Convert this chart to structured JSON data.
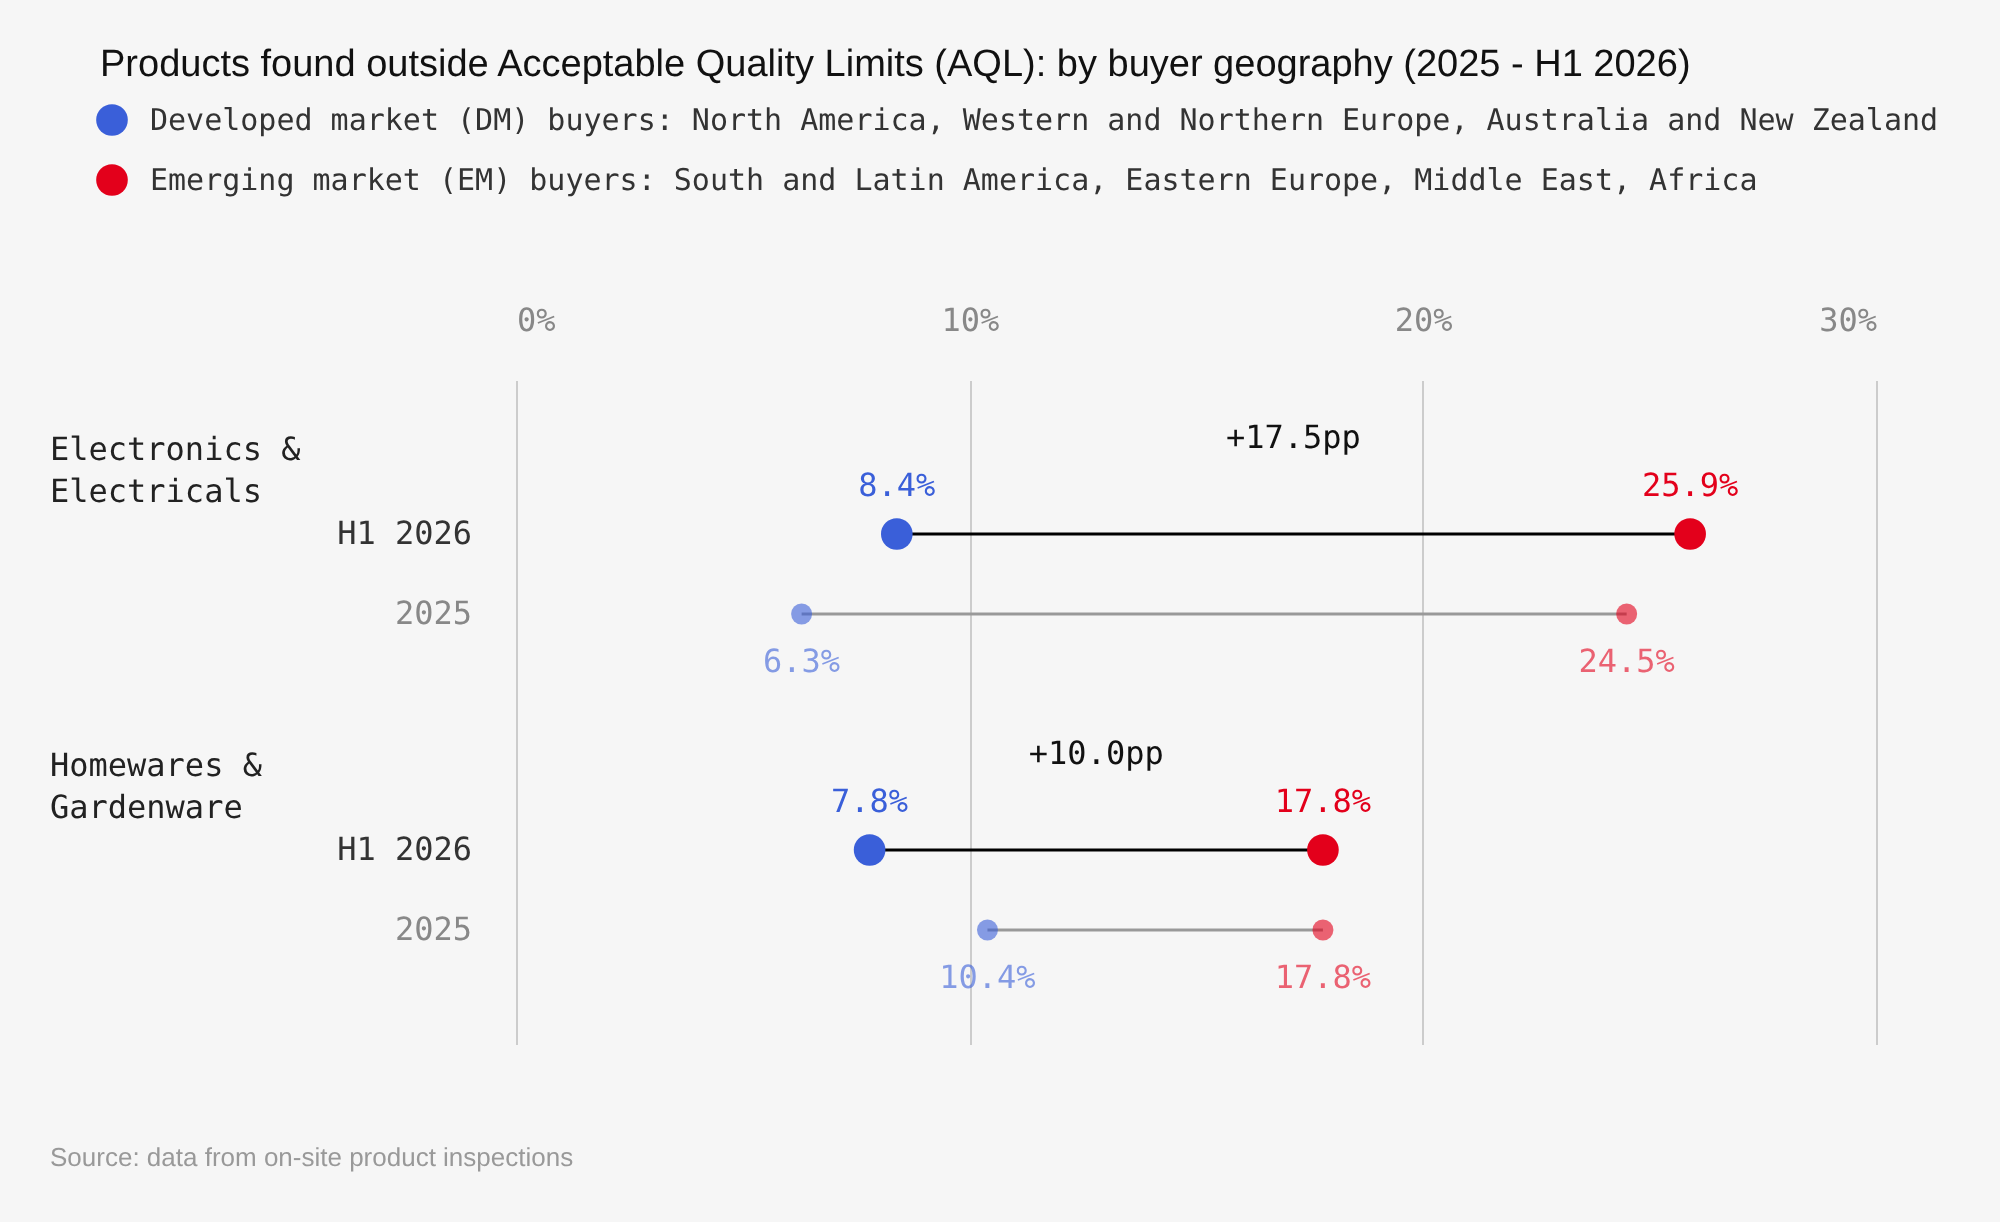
{
  "chart_data": {
    "type": "scatter",
    "orientation": "horizontal",
    "marker": "circle",
    "title": "Products found outside Acceptable Quality Limits (AQL): by buyer geography (2025 - H1 2026)",
    "categories": [
      "H1 2026",
      "2025",
      "H1 2026",
      "2025"
    ],
    "series": [
      {
        "name": "Developed market (DM) buyers: North America, Western and Northern Europe, Australia and New Zealand",
        "color": "#3a5fd9",
        "values": [
          8.4,
          6.3,
          7.8,
          10.4
        ],
        "sizes": [
          1,
          0.44,
          1,
          0.44
        ],
        "value_labels": [
          "8.4%",
          "6.3%",
          "7.8%",
          "10.4%"
        ]
      },
      {
        "name": "Emerging market (EM) buyers: South and Latin America, Eastern Europe, Middle East, Africa",
        "color": "#e3001b",
        "values": [
          25.9,
          24.5,
          17.8,
          17.8
        ],
        "sizes": [
          1,
          0.44,
          1,
          0.44
        ],
        "value_labels": [
          "25.9%",
          "24.5%",
          "17.8%",
          "17.8%"
        ]
      }
    ],
    "xlim": [
      0,
      30
    ],
    "xticks": [
      {
        "value": 0,
        "label": "0%"
      },
      {
        "value": 10,
        "label": "10%"
      },
      {
        "value": 20,
        "label": "20%"
      },
      {
        "value": 30,
        "label": "30%"
      }
    ],
    "grid": "x",
    "legend": "top",
    "annotations": [
      "Electronics & Electricals",
      "+17.5pp",
      "Homewares & Gardenware",
      "+10.0pp",
      "Source: data from on-site product inspections"
    ]
  }
}
